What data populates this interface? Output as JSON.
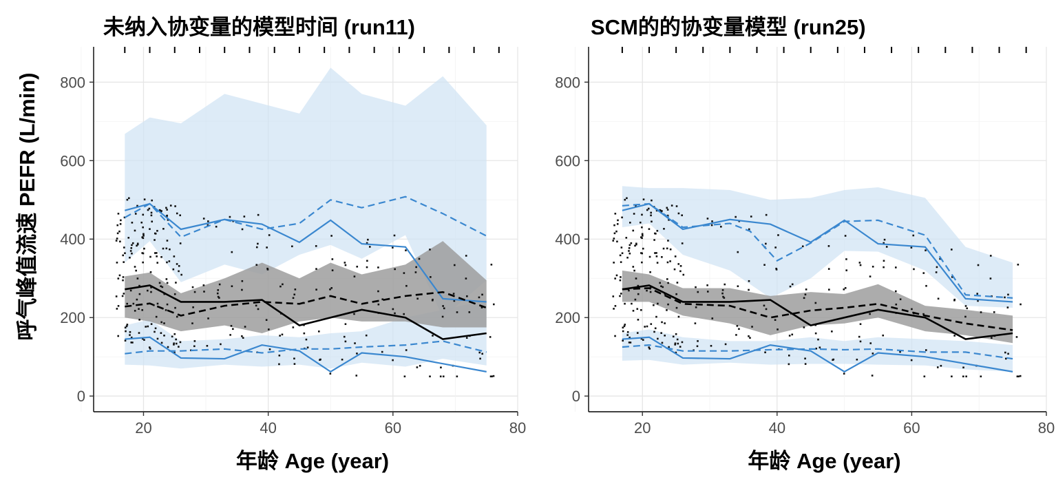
{
  "figure": {
    "ylabel": "呼气峰值流速 PEFR (L/min)",
    "colors": {
      "observed": "#000000",
      "simulated": "#3a87cf",
      "band_blue": "#cfe2f3",
      "band_grey": "#9e9e9e",
      "points": "#111111"
    }
  },
  "chart_data": [
    {
      "type": "line",
      "title": "未纳入协变量的模型时间 (run11)",
      "xlabel": "年龄 Age (year)",
      "ylabel": "呼气峰值流速 PEFR (L/min)",
      "xlim": [
        12,
        80
      ],
      "ylim": [
        -40,
        890
      ],
      "xticks": [
        20,
        40,
        60,
        80
      ],
      "yticks": [
        0,
        200,
        400,
        600,
        800
      ],
      "grid": true,
      "rug_x": [
        17,
        21,
        25,
        29,
        33,
        37,
        41,
        45,
        49,
        53,
        57,
        61,
        65,
        69,
        73,
        77
      ],
      "series": [
        {
          "role": "obs_p95",
          "style": "solid",
          "color": "blue",
          "x": [
            17,
            21,
            26,
            33,
            39,
            45,
            50,
            55,
            62,
            68,
            75
          ],
          "y": [
            473,
            490,
            425,
            450,
            438,
            392,
            448,
            388,
            380,
            248,
            240
          ]
        },
        {
          "role": "obs_median",
          "style": "solid",
          "color": "black",
          "x": [
            17,
            21,
            26,
            33,
            39,
            45,
            55,
            62,
            68,
            75
          ],
          "y": [
            272,
            282,
            240,
            240,
            245,
            180,
            220,
            200,
            145,
            160
          ]
        },
        {
          "role": "obs_p05",
          "style": "solid",
          "color": "blue",
          "x": [
            17,
            21,
            26,
            33,
            39,
            45,
            50,
            55,
            62,
            75
          ],
          "y": [
            145,
            150,
            97,
            95,
            130,
            115,
            62,
            110,
            100,
            62
          ]
        },
        {
          "role": "sim_p95",
          "style": "dashed",
          "color": "blue",
          "x": [
            17,
            21,
            26,
            33,
            39,
            45,
            50,
            55,
            62,
            68,
            75
          ],
          "y": [
            455,
            490,
            405,
            450,
            425,
            440,
            500,
            480,
            508,
            465,
            408
          ]
        },
        {
          "role": "sim_median",
          "style": "dashed",
          "color": "black",
          "x": [
            17,
            21,
            26,
            33,
            39,
            45,
            50,
            55,
            62,
            68,
            75
          ],
          "y": [
            228,
            236,
            205,
            230,
            240,
            235,
            255,
            235,
            255,
            265,
            225
          ]
        },
        {
          "role": "sim_p05",
          "style": "dashed",
          "color": "blue",
          "x": [
            17,
            21,
            26,
            33,
            39,
            45,
            50,
            55,
            62,
            68,
            75
          ],
          "y": [
            108,
            115,
            115,
            120,
            110,
            120,
            120,
            125,
            130,
            140,
            112
          ]
        }
      ],
      "bands": [
        {
          "role": "pi_p95",
          "color": "blue",
          "x": [
            17,
            21,
            26,
            33,
            39,
            45,
            50,
            55,
            62,
            68,
            75
          ],
          "upper": [
            668,
            710,
            695,
            770,
            745,
            720,
            837,
            770,
            740,
            815,
            690
          ],
          "lower": [
            340,
            395,
            290,
            335,
            310,
            360,
            385,
            350,
            410,
            200,
            295
          ]
        },
        {
          "role": "pi_median",
          "color": "grey",
          "x": [
            17,
            21,
            26,
            33,
            39,
            45,
            50,
            55,
            62,
            68,
            75
          ],
          "upper": [
            305,
            315,
            262,
            300,
            340,
            300,
            340,
            310,
            335,
            395,
            295
          ],
          "lower": [
            200,
            190,
            165,
            180,
            160,
            190,
            200,
            190,
            190,
            175,
            175
          ]
        },
        {
          "role": "pi_p05",
          "color": "blue",
          "x": [
            17,
            21,
            26,
            33,
            39,
            45,
            50,
            55,
            62,
            68,
            75
          ],
          "upper": [
            180,
            195,
            140,
            145,
            155,
            150,
            160,
            165,
            200,
            220,
            245
          ],
          "lower": [
            80,
            78,
            70,
            80,
            75,
            80,
            70,
            85,
            75,
            95,
            78
          ]
        }
      ]
    },
    {
      "type": "line",
      "title": "SCM的的协变量模型 (run25)",
      "xlabel": "年龄 Age (year)",
      "ylabel": "",
      "xlim": [
        12,
        80
      ],
      "ylim": [
        -40,
        890
      ],
      "xticks": [
        20,
        40,
        60,
        80
      ],
      "yticks": [
        0,
        200,
        400,
        600,
        800
      ],
      "grid": true,
      "rug_x": [
        17,
        21,
        25,
        29,
        33,
        37,
        41,
        45,
        49,
        53,
        57,
        61,
        65,
        69,
        73,
        77
      ],
      "series": [
        {
          "role": "obs_p95",
          "style": "solid",
          "color": "blue",
          "x": [
            17,
            21,
            26,
            33,
            39,
            45,
            50,
            55,
            62,
            68,
            75
          ],
          "y": [
            473,
            490,
            425,
            450,
            438,
            392,
            448,
            388,
            380,
            248,
            240
          ]
        },
        {
          "role": "obs_median",
          "style": "solid",
          "color": "black",
          "x": [
            17,
            21,
            26,
            33,
            39,
            45,
            55,
            62,
            68,
            75
          ],
          "y": [
            272,
            282,
            240,
            240,
            245,
            180,
            220,
            200,
            145,
            160
          ]
        },
        {
          "role": "obs_p05",
          "style": "solid",
          "color": "blue",
          "x": [
            17,
            21,
            26,
            33,
            39,
            45,
            50,
            55,
            62,
            75
          ],
          "y": [
            145,
            150,
            97,
            95,
            130,
            115,
            62,
            110,
            100,
            62
          ]
        },
        {
          "role": "sim_p95",
          "style": "dashed",
          "color": "blue",
          "x": [
            17,
            21,
            26,
            33,
            36,
            40,
            45,
            50,
            55,
            62,
            68,
            75
          ],
          "y": [
            485,
            490,
            430,
            440,
            420,
            345,
            390,
            445,
            448,
            410,
            258,
            250
          ]
        },
        {
          "role": "sim_median",
          "style": "dashed",
          "color": "black",
          "x": [
            17,
            21,
            26,
            33,
            39,
            45,
            50,
            55,
            62,
            68,
            75
          ],
          "y": [
            272,
            275,
            235,
            230,
            200,
            218,
            225,
            235,
            205,
            185,
            168
          ]
        },
        {
          "role": "sim_p05",
          "style": "dashed",
          "color": "blue",
          "x": [
            17,
            21,
            26,
            33,
            39,
            45,
            50,
            55,
            62,
            68,
            75
          ],
          "y": [
            125,
            130,
            115,
            115,
            118,
            120,
            118,
            120,
            112,
            112,
            95
          ]
        }
      ],
      "bands": [
        {
          "role": "pi_p95",
          "color": "blue",
          "x": [
            17,
            21,
            26,
            33,
            39,
            45,
            50,
            55,
            62,
            68,
            75
          ],
          "upper": [
            535,
            530,
            530,
            525,
            500,
            505,
            525,
            532,
            505,
            380,
            340
          ],
          "lower": [
            430,
            440,
            360,
            320,
            250,
            300,
            370,
            368,
            320,
            230,
            225
          ]
        },
        {
          "role": "pi_median",
          "color": "grey",
          "x": [
            17,
            21,
            26,
            33,
            39,
            45,
            50,
            55,
            62,
            68,
            75
          ],
          "upper": [
            320,
            310,
            275,
            275,
            255,
            265,
            260,
            285,
            230,
            220,
            205
          ],
          "lower": [
            240,
            240,
            205,
            185,
            155,
            180,
            185,
            200,
            165,
            155,
            135
          ]
        },
        {
          "role": "pi_p05",
          "color": "blue",
          "x": [
            17,
            21,
            26,
            33,
            39,
            45,
            50,
            55,
            62,
            68,
            75
          ],
          "upper": [
            160,
            170,
            150,
            140,
            140,
            150,
            140,
            150,
            145,
            140,
            130
          ],
          "lower": [
            90,
            92,
            80,
            85,
            80,
            82,
            82,
            80,
            78,
            68,
            62
          ]
        }
      ]
    }
  ]
}
